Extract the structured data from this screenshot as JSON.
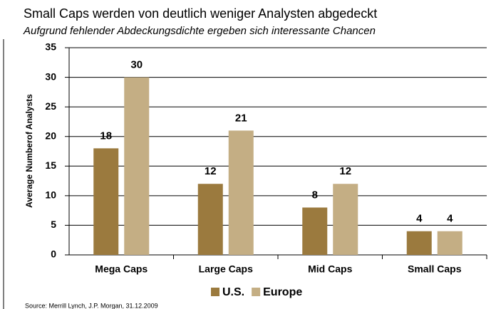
{
  "chart_data": {
    "type": "bar",
    "title": "Small Caps werden von deutlich weniger Analysten abgedeckt",
    "subtitle": "Aufgrund fehlender Abdeckungsdichte ergeben sich interessante Chancen",
    "y_label": "Average Numberof Analysts",
    "categories": [
      "Mega Caps",
      "Large Caps",
      "Mid Caps",
      "Small Caps"
    ],
    "series": [
      {
        "name": "U.S.",
        "color": "#9b7a3e",
        "values": [
          18,
          12,
          8,
          4
        ]
      },
      {
        "name": "Europe",
        "color": "#c4ae84",
        "values": [
          30,
          21,
          12,
          4
        ]
      }
    ],
    "ylim": [
      0,
      35
    ],
    "yticks": [
      0,
      5,
      10,
      15,
      20,
      25,
      30,
      35
    ],
    "grid": true,
    "legend": "bottom",
    "source": "Source: Merrill Lynch, J.P. Morgan, 31.12.2009"
  }
}
